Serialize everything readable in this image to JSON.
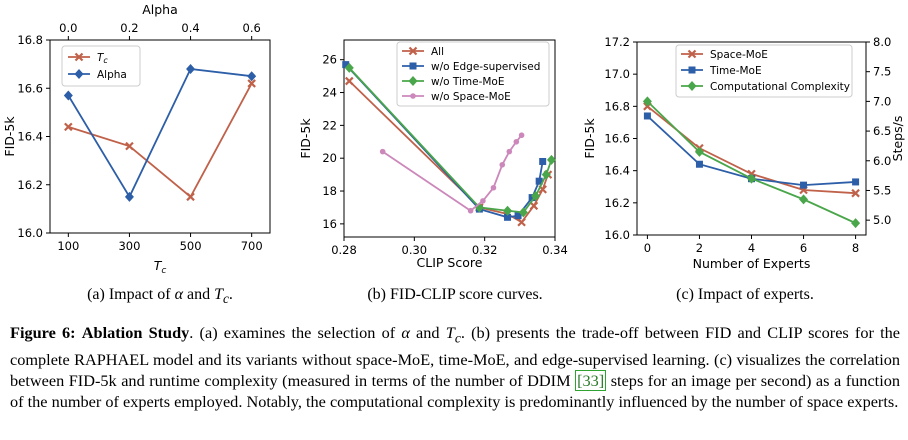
{
  "colors": {
    "red": "#c0614a",
    "blue": "#2d5ea8",
    "green": "#4aa64a",
    "pink": "#cc88bb"
  },
  "panel_a": {
    "caption": "(a) Impact of α and Tc.",
    "caption_prefix": "(a) Impact of ",
    "caption_alpha": "α",
    "caption_mid": " and ",
    "caption_T": "T",
    "caption_sub": "c",
    "caption_end": "."
  },
  "panel_b": {
    "caption": "(b) FID-CLIP score curves."
  },
  "panel_c": {
    "caption": "(c) Impact of experts."
  },
  "caption": {
    "figure_label": "Figure 6:",
    "title": "Ablation Study",
    "text1": ". (a) examines the selection of ",
    "alpha": "α",
    "text2": " and ",
    "T": "T",
    "sub": "c",
    "text3": ". (b) presents the trade-off between FID and CLIP scores for the complete RAPHAEL model and its variants without space-MoE, time-MoE, and edge-supervised learning. (c) visualizes the correlation between FID-5k and runtime complexity (measured in terms of the number of DDIM ",
    "ref": "[33]",
    "text4": " steps for an image per second) as a function of the number of experts employed. Notably, the computational complexity is predominantly influenced by the number of space experts."
  },
  "chart_data": [
    {
      "type": "line",
      "xlabel": "Tc",
      "ylabel": "FID-5k",
      "top_xlabel": "Alpha",
      "xticks": [
        "100",
        "300",
        "500",
        "700"
      ],
      "top_xticks": [
        "0.0",
        "0.2",
        "0.4",
        "0.6"
      ],
      "yticks": [
        "16.0",
        "16.2",
        "16.4",
        "16.6",
        "16.8"
      ],
      "xlim": [
        40,
        760
      ],
      "ylim": [
        16.0,
        16.8
      ],
      "legend": "top-left",
      "series": [
        {
          "name": "Tc",
          "axis": "bottom",
          "marker": "x",
          "color": "#c0614a",
          "x": [
            100,
            300,
            500,
            700
          ],
          "y": [
            16.44,
            16.36,
            16.15,
            16.62
          ]
        },
        {
          "name": "Alpha",
          "axis": "top",
          "marker": "diamond",
          "color": "#2d5ea8",
          "x": [
            0.0,
            0.2,
            0.4,
            0.6
          ],
          "y": [
            16.57,
            16.15,
            16.68,
            16.65
          ]
        }
      ]
    },
    {
      "type": "line",
      "xlabel": "CLIP Score",
      "ylabel": "FID-5k",
      "xticks": [
        "0.28",
        "0.30",
        "0.32",
        "0.34"
      ],
      "yticks": [
        "16",
        "18",
        "20",
        "22",
        "24",
        "26"
      ],
      "xlim": [
        0.28,
        0.34
      ],
      "ylim": [
        15.2,
        27.2
      ],
      "legend": "top-right",
      "series": [
        {
          "name": "All",
          "marker": "x",
          "color": "#c0614a",
          "x": [
            0.2815,
            0.3185,
            0.3265,
            0.3305,
            0.334,
            0.3365,
            0.338
          ],
          "y": [
            24.7,
            17.0,
            16.6,
            16.1,
            17.1,
            18.1,
            19.0
          ]
        },
        {
          "name": "w/o Edge-supervised",
          "marker": "square",
          "color": "#2d5ea8",
          "x": [
            0.2805,
            0.3185,
            0.3265,
            0.3295,
            0.3335,
            0.3355,
            0.3365
          ],
          "y": [
            25.7,
            16.9,
            16.4,
            16.5,
            17.6,
            18.6,
            19.8
          ]
        },
        {
          "name": "w/o Time-MoE",
          "marker": "diamond",
          "color": "#4aa64a",
          "x": [
            0.2815,
            0.3185,
            0.3265,
            0.331,
            0.3345,
            0.3375,
            0.339
          ],
          "y": [
            25.5,
            17.0,
            16.8,
            16.7,
            17.7,
            19.0,
            19.9
          ]
        },
        {
          "name": "w/o Space-MoE",
          "marker": "circle",
          "color": "#cc88bb",
          "x": [
            0.291,
            0.316,
            0.3195,
            0.3225,
            0.325,
            0.327,
            0.329,
            0.3305
          ],
          "y": [
            20.4,
            16.8,
            17.4,
            18.2,
            19.6,
            20.4,
            21.0,
            21.4
          ]
        }
      ]
    },
    {
      "type": "line",
      "xlabel": "Number of Experts",
      "ylabel": "FID-5k",
      "right_ylabel": "Steps/s",
      "xticks": [
        "0",
        "2",
        "4",
        "6",
        "8"
      ],
      "yticks": [
        "16.0",
        "16.2",
        "16.4",
        "16.6",
        "16.8",
        "17.0",
        "17.2"
      ],
      "right_yticks": [
        "5.0",
        "5.5",
        "6.0",
        "6.5",
        "7.0",
        "7.5",
        "8.0"
      ],
      "xlim": [
        -0.4,
        8.4
      ],
      "ylim": [
        16.0,
        17.2
      ],
      "right_ylim": [
        4.75,
        8.0
      ],
      "legend": "top-right",
      "series": [
        {
          "name": "Space-MoE",
          "axis": "left",
          "marker": "x",
          "color": "#c0614a",
          "x": [
            0,
            2,
            4,
            6,
            8
          ],
          "y": [
            16.8,
            16.54,
            16.38,
            16.28,
            16.26
          ]
        },
        {
          "name": "Time-MoE",
          "axis": "left",
          "marker": "square",
          "color": "#2d5ea8",
          "x": [
            0,
            2,
            4,
            6,
            8
          ],
          "y": [
            16.74,
            16.44,
            16.35,
            16.31,
            16.33
          ]
        },
        {
          "name": "Computational Complexity",
          "axis": "right",
          "marker": "diamond",
          "color": "#4aa64a",
          "x": [
            0,
            2,
            4,
            6,
            8
          ],
          "y": [
            7.0,
            6.15,
            5.7,
            5.35,
            4.95
          ]
        }
      ]
    }
  ]
}
